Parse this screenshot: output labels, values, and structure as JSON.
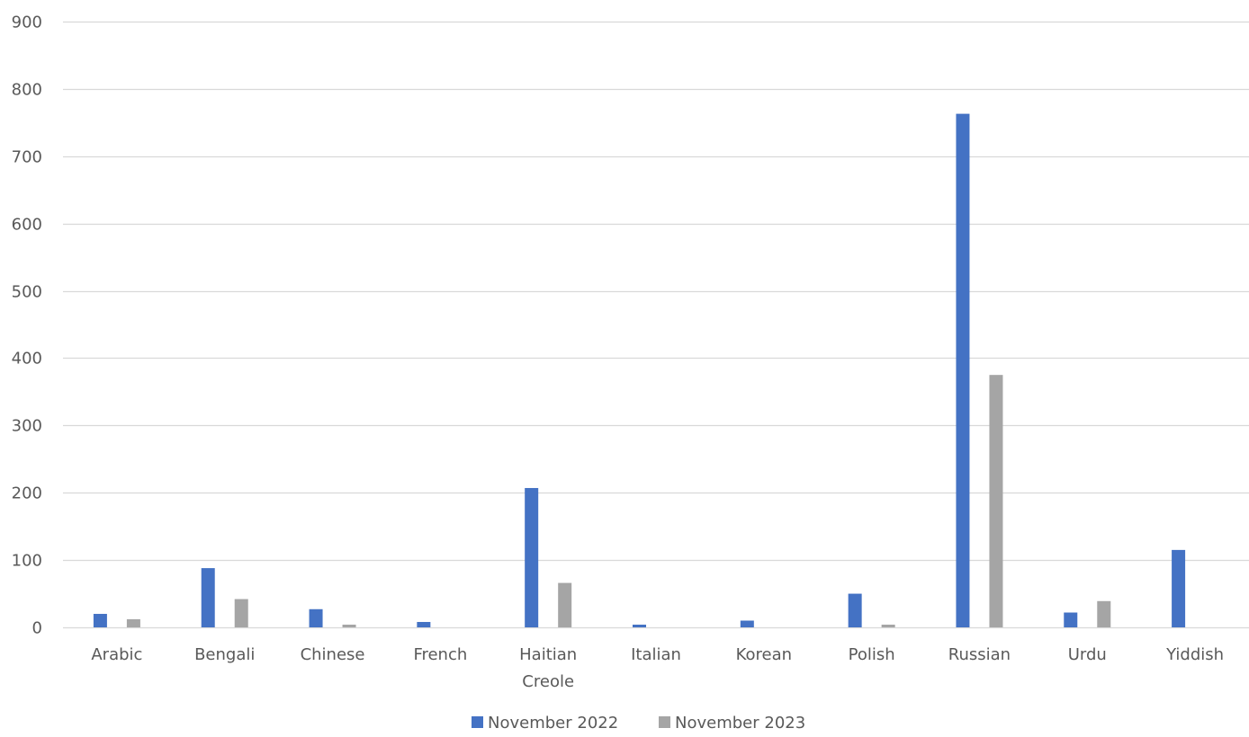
{
  "chart_data": {
    "type": "bar",
    "categories": [
      "Arabic",
      "Bengali",
      "Chinese",
      "French",
      "Haitian Creole",
      "Italian",
      "Korean",
      "Polish",
      "Russian",
      "Urdu",
      "Yiddish"
    ],
    "category_lines": [
      [
        "Arabic"
      ],
      [
        "Bengali"
      ],
      [
        "Chinese"
      ],
      [
        "French"
      ],
      [
        "Haitian",
        "Creole"
      ],
      [
        "Italian"
      ],
      [
        "Korean"
      ],
      [
        "Polish"
      ],
      [
        "Russian"
      ],
      [
        "Urdu"
      ],
      [
        "Yiddish"
      ]
    ],
    "series": [
      {
        "name": "November 2022",
        "color": "#4472C4",
        "values": [
          20,
          88,
          27,
          8,
          207,
          4,
          10,
          50,
          763,
          22,
          115
        ]
      },
      {
        "name": "November 2023",
        "color": "#A5A5A5",
        "values": [
          12,
          42,
          4,
          0,
          66,
          0,
          0,
          4,
          375,
          39,
          0
        ]
      }
    ],
    "ylim": [
      0,
      900
    ],
    "yticks": [
      0,
      100,
      200,
      300,
      400,
      500,
      600,
      700,
      800,
      900
    ],
    "title": "",
    "xlabel": "",
    "ylabel": "",
    "grid": true,
    "legend_position": "bottom",
    "gridline_color": "#D9D9D9",
    "axis_line_color": "#D9D9D9"
  }
}
